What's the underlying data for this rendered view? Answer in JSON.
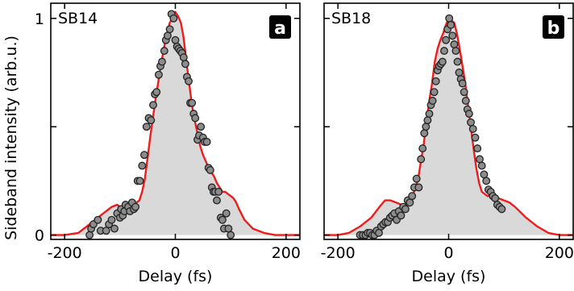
{
  "figure": {
    "ylabel": "Sideband intensity (arb.u.)",
    "colors": {
      "fit_line": "#ee1c1c",
      "fill": "#d9d9d9",
      "marker_fill": "#8c8c8c",
      "marker_edge": "#222222",
      "badge_bg": "#000000",
      "badge_text": "#ffffff"
    }
  },
  "chart_data": [
    {
      "type": "scatter",
      "panel_label": "SB14",
      "badge": "a",
      "xlabel": "Delay (fs)",
      "ylabel": "Sideband intensity (arb.u.)",
      "xlim": [
        -225,
        225
      ],
      "ylim": [
        -0.02,
        1.07
      ],
      "x_ticks": [
        -200,
        0,
        200
      ],
      "x_tick_labels": [
        "-200",
        "0",
        "200"
      ],
      "y_ticks": [
        0,
        1
      ],
      "y_tick_labels": [
        "0",
        "1"
      ],
      "legend": "none",
      "grid": false,
      "series": [
        {
          "kind": "line",
          "x": [
            -225,
            -200,
            -175,
            -150,
            -130,
            -115,
            -105,
            -95,
            -85,
            -75,
            -65,
            -60,
            -55,
            -50,
            -45,
            -40,
            -35,
            -30,
            -25,
            -20,
            -15,
            -10,
            -5,
            0,
            5,
            10,
            15,
            20,
            25,
            30,
            35,
            40,
            45,
            50,
            55,
            60,
            65,
            70,
            75,
            80,
            85,
            90,
            95,
            100,
            105,
            110,
            115,
            125,
            140,
            160,
            180,
            200,
            225
          ],
          "y": [
            0.0,
            0.0,
            0.01,
            0.06,
            0.1,
            0.13,
            0.14,
            0.12,
            0.11,
            0.14,
            0.16,
            0.2,
            0.26,
            0.36,
            0.46,
            0.55,
            0.64,
            0.72,
            0.8,
            0.87,
            0.93,
            0.98,
            1.0,
            1.03,
            1.01,
            0.98,
            0.91,
            0.8,
            0.7,
            0.6,
            0.53,
            0.47,
            0.41,
            0.37,
            0.34,
            0.31,
            0.29,
            0.27,
            0.24,
            0.22,
            0.2,
            0.2,
            0.19,
            0.18,
            0.17,
            0.15,
            0.12,
            0.07,
            0.03,
            0.01,
            0.0,
            0.0,
            0.0
          ]
        },
        {
          "kind": "points",
          "x": [
            -155,
            -152,
            -148,
            -140,
            -135,
            -125,
            -120,
            -115,
            -110,
            -105,
            -100,
            -98,
            -95,
            -92,
            -90,
            -85,
            -82,
            -78,
            -75,
            -72,
            -68,
            -64,
            -60,
            -56,
            -52,
            -48,
            -44,
            -40,
            -37,
            -34,
            -30,
            -27,
            -24,
            -20,
            -17,
            -14,
            -10,
            -7,
            -3,
            0,
            3,
            6,
            9,
            12,
            15,
            18,
            21,
            24,
            27,
            30,
            33,
            36,
            40,
            43,
            46,
            50,
            53,
            57,
            60,
            63,
            66,
            69,
            72,
            75,
            78,
            82,
            85,
            88,
            92,
            96,
            100
          ],
          "y": [
            0.0,
            0.03,
            0.05,
            0.07,
            0.02,
            0.02,
            0.05,
            0.07,
            0.03,
            0.1,
            0.08,
            0.12,
            0.09,
            0.11,
            0.14,
            0.13,
            0.11,
            0.15,
            0.12,
            0.13,
            0.25,
            0.25,
            0.32,
            0.37,
            0.5,
            0.54,
            0.53,
            0.6,
            0.65,
            0.66,
            0.74,
            0.78,
            0.8,
            0.85,
            0.9,
            0.92,
            0.95,
            1.02,
            1.0,
            0.9,
            0.87,
            0.86,
            0.85,
            0.84,
            0.82,
            0.79,
            0.73,
            0.71,
            0.61,
            0.61,
            0.56,
            0.54,
            0.44,
            0.46,
            0.5,
            0.45,
            0.43,
            0.43,
            0.31,
            0.3,
            0.22,
            0.2,
            0.2,
            0.16,
            0.2,
            0.08,
            0.07,
            0.03,
            0.1,
            0.03,
            0.0
          ]
        }
      ]
    },
    {
      "type": "scatter",
      "panel_label": "SB18",
      "badge": "b",
      "xlabel": "Delay (fs)",
      "ylabel": "",
      "xlim": [
        -225,
        225
      ],
      "ylim": [
        -0.02,
        1.07
      ],
      "x_ticks": [
        -200,
        0,
        200
      ],
      "x_tick_labels": [
        "-200",
        "0",
        "200"
      ],
      "y_ticks": [
        0,
        1
      ],
      "y_tick_labels": [],
      "legend": "none",
      "grid": false,
      "series": [
        {
          "kind": "line",
          "x": [
            -225,
            -200,
            -180,
            -160,
            -140,
            -125,
            -115,
            -105,
            -95,
            -85,
            -75,
            -65,
            -55,
            -45,
            -40,
            -35,
            -30,
            -25,
            -20,
            -15,
            -10,
            -5,
            0,
            5,
            10,
            15,
            20,
            25,
            30,
            35,
            40,
            45,
            50,
            55,
            60,
            70,
            80,
            90,
            100,
            110,
            120,
            140,
            160,
            180,
            200,
            225
          ],
          "y": [
            0.0,
            0.0,
            0.01,
            0.04,
            0.08,
            0.13,
            0.16,
            0.16,
            0.15,
            0.14,
            0.14,
            0.18,
            0.26,
            0.42,
            0.52,
            0.62,
            0.7,
            0.8,
            0.86,
            0.9,
            0.93,
            0.97,
            1.0,
            0.99,
            0.98,
            0.93,
            0.86,
            0.78,
            0.7,
            0.6,
            0.5,
            0.4,
            0.31,
            0.24,
            0.2,
            0.18,
            0.18,
            0.17,
            0.16,
            0.15,
            0.13,
            0.08,
            0.04,
            0.01,
            0.0,
            0.0
          ]
        },
        {
          "kind": "points",
          "x": [
            -160,
            -155,
            -150,
            -146,
            -142,
            -138,
            -134,
            -130,
            -126,
            -122,
            -118,
            -114,
            -110,
            -106,
            -102,
            -98,
            -94,
            -90,
            -86,
            -82,
            -78,
            -74,
            -70,
            -66,
            -62,
            -58,
            -54,
            -50,
            -47,
            -44,
            -41,
            -38,
            -35,
            -32,
            -29,
            -26,
            -23,
            -20,
            -17,
            -14,
            -11,
            -8,
            -5,
            -2,
            1,
            4,
            7,
            10,
            13,
            16,
            19,
            22,
            25,
            28,
            31,
            34,
            37,
            40,
            44,
            48,
            52,
            56,
            60,
            64,
            68,
            72,
            76,
            80,
            84,
            88,
            92,
            96
          ],
          "y": [
            0.0,
            0.0,
            0.0,
            0.01,
            0.01,
            0.0,
            0.0,
            0.02,
            0.01,
            0.04,
            0.05,
            0.06,
            0.06,
            0.08,
            0.09,
            0.1,
            0.07,
            0.11,
            0.09,
            0.13,
            0.12,
            0.16,
            0.15,
            0.18,
            0.22,
            0.26,
            0.22,
            0.35,
            0.4,
            0.47,
            0.5,
            0.53,
            0.56,
            0.6,
            0.62,
            0.66,
            0.71,
            0.76,
            0.78,
            0.79,
            0.8,
            0.85,
            0.9,
            0.95,
            1.0,
            0.97,
            0.92,
            0.88,
            0.85,
            0.8,
            0.75,
            0.72,
            0.7,
            0.66,
            0.62,
            0.58,
            0.56,
            0.52,
            0.49,
            0.45,
            0.4,
            0.35,
            0.32,
            0.28,
            0.25,
            0.21,
            0.2,
            0.18,
            0.17,
            0.14,
            0.13,
            0.12
          ]
        }
      ]
    }
  ]
}
